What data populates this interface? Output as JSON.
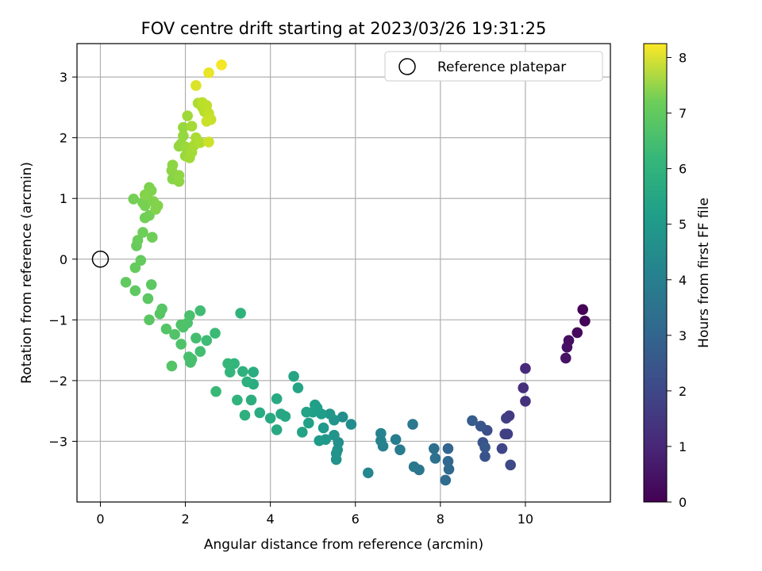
{
  "chart_data": {
    "type": "scatter",
    "title": "FOV centre drift starting at 2023/03/26 19:31:25",
    "xlabel": "Angular distance from reference (arcmin)",
    "ylabel": "Rotation from reference (arcmin)",
    "xlim": [
      -0.55,
      12.0
    ],
    "ylim": [
      -4.0,
      3.55
    ],
    "xticks": [
      0,
      2,
      4,
      6,
      8,
      10
    ],
    "yticks": [
      -3,
      -2,
      -1,
      0,
      1,
      2,
      3
    ],
    "grid": true,
    "legend": {
      "placement": "top-right",
      "entries": [
        {
          "label": "Reference platepar",
          "marker": "hollow-circle"
        }
      ]
    },
    "reference_point": {
      "x": 0,
      "y": 0
    },
    "colorbar": {
      "label": "Hours from first FF file",
      "min": 0,
      "max": 8.25,
      "ticks": [
        0,
        1,
        2,
        3,
        4,
        5,
        6,
        7,
        8
      ],
      "colormap": "viridis"
    },
    "series": [
      {
        "marker": "filled-circle",
        "points": [
          {
            "x": 11.35,
            "y": -0.83,
            "c": 0.05
          },
          {
            "x": 11.4,
            "y": -1.02,
            "c": 0.1
          },
          {
            "x": 11.22,
            "y": -1.21,
            "c": 0.2
          },
          {
            "x": 11.02,
            "y": -1.34,
            "c": 0.3
          },
          {
            "x": 10.98,
            "y": -1.45,
            "c": 0.35
          },
          {
            "x": 10.95,
            "y": -1.63,
            "c": 0.4
          },
          {
            "x": 10.0,
            "y": -1.8,
            "c": 1.0
          },
          {
            "x": 9.95,
            "y": -2.12,
            "c": 1.1
          },
          {
            "x": 10.0,
            "y": -2.34,
            "c": 1.15
          },
          {
            "x": 9.62,
            "y": -2.58,
            "c": 1.4
          },
          {
            "x": 9.55,
            "y": -2.62,
            "c": 1.5
          },
          {
            "x": 9.52,
            "y": -2.88,
            "c": 1.6
          },
          {
            "x": 9.45,
            "y": -3.12,
            "c": 1.7
          },
          {
            "x": 9.65,
            "y": -3.39,
            "c": 1.8
          },
          {
            "x": 9.1,
            "y": -2.82,
            "c": 2.0
          },
          {
            "x": 9.0,
            "y": -3.02,
            "c": 2.1
          },
          {
            "x": 9.05,
            "y": -3.25,
            "c": 2.15
          },
          {
            "x": 8.95,
            "y": -2.75,
            "c": 2.2
          },
          {
            "x": 8.75,
            "y": -2.66,
            "c": 2.4
          },
          {
            "x": 9.05,
            "y": -3.1,
            "c": 2.25
          },
          {
            "x": 9.58,
            "y": -2.88,
            "c": 1.55
          },
          {
            "x": 8.18,
            "y": -3.12,
            "c": 2.7
          },
          {
            "x": 8.18,
            "y": -3.33,
            "c": 2.75
          },
          {
            "x": 8.2,
            "y": -3.46,
            "c": 2.8
          },
          {
            "x": 8.12,
            "y": -3.64,
            "c": 2.9
          },
          {
            "x": 7.85,
            "y": -3.12,
            "c": 3.0
          },
          {
            "x": 7.88,
            "y": -3.28,
            "c": 3.05
          },
          {
            "x": 7.5,
            "y": -3.47,
            "c": 3.2
          },
          {
            "x": 7.38,
            "y": -3.42,
            "c": 3.3
          },
          {
            "x": 7.35,
            "y": -2.72,
            "c": 3.35
          },
          {
            "x": 7.05,
            "y": -3.14,
            "c": 3.45
          },
          {
            "x": 6.95,
            "y": -2.97,
            "c": 3.5
          },
          {
            "x": 6.65,
            "y": -3.08,
            "c": 3.6
          },
          {
            "x": 6.6,
            "y": -2.87,
            "c": 3.65
          },
          {
            "x": 6.6,
            "y": -2.99,
            "c": 3.7
          },
          {
            "x": 6.3,
            "y": -3.52,
            "c": 3.8
          },
          {
            "x": 5.9,
            "y": -2.72,
            "c": 4.0
          },
          {
            "x": 5.7,
            "y": -2.6,
            "c": 4.05
          },
          {
            "x": 5.6,
            "y": -3.02,
            "c": 4.1
          },
          {
            "x": 5.58,
            "y": -3.14,
            "c": 4.15
          },
          {
            "x": 5.55,
            "y": -3.3,
            "c": 4.2
          },
          {
            "x": 5.55,
            "y": -3.2,
            "c": 4.22
          },
          {
            "x": 5.5,
            "y": -2.9,
            "c": 4.25
          },
          {
            "x": 5.5,
            "y": -2.65,
            "c": 4.3
          },
          {
            "x": 5.4,
            "y": -2.55,
            "c": 4.35
          },
          {
            "x": 5.3,
            "y": -2.97,
            "c": 4.4
          },
          {
            "x": 5.25,
            "y": -2.78,
            "c": 4.45
          },
          {
            "x": 5.15,
            "y": -2.99,
            "c": 4.5
          },
          {
            "x": 5.2,
            "y": -2.55,
            "c": 4.55
          },
          {
            "x": 5.1,
            "y": -2.45,
            "c": 4.6
          },
          {
            "x": 5.05,
            "y": -2.4,
            "c": 4.62
          },
          {
            "x": 5.0,
            "y": -2.52,
            "c": 4.65
          },
          {
            "x": 4.9,
            "y": -2.7,
            "c": 4.7
          },
          {
            "x": 4.85,
            "y": -2.52,
            "c": 4.72
          },
          {
            "x": 4.75,
            "y": -2.85,
            "c": 4.75
          },
          {
            "x": 4.65,
            "y": -2.12,
            "c": 4.8
          },
          {
            "x": 4.55,
            "y": -1.93,
            "c": 4.85
          },
          {
            "x": 4.35,
            "y": -2.59,
            "c": 4.9
          },
          {
            "x": 4.25,
            "y": -2.55,
            "c": 4.92
          },
          {
            "x": 4.15,
            "y": -2.81,
            "c": 4.95
          },
          {
            "x": 4.15,
            "y": -2.3,
            "c": 4.97
          },
          {
            "x": 4.0,
            "y": -2.62,
            "c": 5.0
          },
          {
            "x": 3.75,
            "y": -2.53,
            "c": 5.05
          },
          {
            "x": 3.6,
            "y": -2.06,
            "c": 5.1
          },
          {
            "x": 3.6,
            "y": -1.86,
            "c": 5.12
          },
          {
            "x": 3.55,
            "y": -2.32,
            "c": 5.15
          },
          {
            "x": 3.45,
            "y": -2.02,
            "c": 5.2
          },
          {
            "x": 3.4,
            "y": -2.57,
            "c": 5.22
          },
          {
            "x": 3.35,
            "y": -1.85,
            "c": 5.25
          },
          {
            "x": 3.3,
            "y": -0.89,
            "c": 5.3
          },
          {
            "x": 3.22,
            "y": -2.32,
            "c": 5.35
          },
          {
            "x": 3.15,
            "y": -1.72,
            "c": 5.4
          },
          {
            "x": 3.05,
            "y": -1.86,
            "c": 5.45
          },
          {
            "x": 3.0,
            "y": -1.72,
            "c": 5.5
          },
          {
            "x": 2.72,
            "y": -2.18,
            "c": 5.55
          },
          {
            "x": 2.7,
            "y": -1.22,
            "c": 5.6
          },
          {
            "x": 2.5,
            "y": -1.34,
            "c": 5.65
          },
          {
            "x": 2.35,
            "y": -0.85,
            "c": 5.7
          },
          {
            "x": 2.35,
            "y": -1.52,
            "c": 5.72
          },
          {
            "x": 2.25,
            "y": -1.3,
            "c": 5.75
          },
          {
            "x": 2.15,
            "y": -1.65,
            "c": 5.78
          },
          {
            "x": 2.12,
            "y": -1.7,
            "c": 5.8
          },
          {
            "x": 2.08,
            "y": -1.61,
            "c": 5.82
          },
          {
            "x": 2.1,
            "y": -0.93,
            "c": 5.85
          },
          {
            "x": 2.05,
            "y": -1.05,
            "c": 5.88
          },
          {
            "x": 1.95,
            "y": -1.12,
            "c": 5.9
          },
          {
            "x": 1.9,
            "y": -1.4,
            "c": 5.92
          },
          {
            "x": 1.9,
            "y": -1.08,
            "c": 5.95
          },
          {
            "x": 1.75,
            "y": -1.24,
            "c": 5.97
          },
          {
            "x": 1.68,
            "y": -1.76,
            "c": 6.0
          },
          {
            "x": 1.55,
            "y": -1.15,
            "c": 6.02
          },
          {
            "x": 1.45,
            "y": -0.82,
            "c": 6.05
          },
          {
            "x": 1.4,
            "y": -0.9,
            "c": 6.07
          },
          {
            "x": 1.15,
            "y": -1.0,
            "c": 6.1
          },
          {
            "x": 1.12,
            "y": -0.65,
            "c": 6.12
          },
          {
            "x": 1.2,
            "y": -0.42,
            "c": 6.15
          },
          {
            "x": 0.82,
            "y": -0.52,
            "c": 6.18
          },
          {
            "x": 0.6,
            "y": -0.38,
            "c": 6.2
          },
          {
            "x": 0.95,
            "y": -0.02,
            "c": 6.25
          },
          {
            "x": 0.82,
            "y": -0.14,
            "c": 6.28
          },
          {
            "x": 0.85,
            "y": 0.22,
            "c": 6.3
          },
          {
            "x": 0.88,
            "y": 0.31,
            "c": 6.35
          },
          {
            "x": 1.0,
            "y": 0.44,
            "c": 6.4
          },
          {
            "x": 1.22,
            "y": 0.36,
            "c": 6.42
          },
          {
            "x": 1.05,
            "y": 0.68,
            "c": 6.45
          },
          {
            "x": 1.15,
            "y": 0.72,
            "c": 6.47
          },
          {
            "x": 0.78,
            "y": 0.99,
            "c": 6.5
          },
          {
            "x": 1.0,
            "y": 0.93,
            "c": 6.52
          },
          {
            "x": 1.05,
            "y": 0.88,
            "c": 6.55
          },
          {
            "x": 1.1,
            "y": 1.02,
            "c": 6.57
          },
          {
            "x": 1.15,
            "y": 1.18,
            "c": 6.6
          },
          {
            "x": 1.2,
            "y": 1.13,
            "c": 6.62
          },
          {
            "x": 1.25,
            "y": 0.95,
            "c": 6.65
          },
          {
            "x": 1.3,
            "y": 0.82,
            "c": 6.67
          },
          {
            "x": 1.35,
            "y": 0.88,
            "c": 6.68
          },
          {
            "x": 1.05,
            "y": 1.06,
            "c": 6.7
          },
          {
            "x": 1.7,
            "y": 1.32,
            "c": 6.75
          },
          {
            "x": 1.68,
            "y": 1.46,
            "c": 6.78
          },
          {
            "x": 1.7,
            "y": 1.55,
            "c": 6.8
          },
          {
            "x": 1.85,
            "y": 1.28,
            "c": 6.82
          },
          {
            "x": 1.85,
            "y": 1.38,
            "c": 6.85
          },
          {
            "x": 1.85,
            "y": 1.86,
            "c": 6.88
          },
          {
            "x": 1.9,
            "y": 1.9,
            "c": 6.9
          },
          {
            "x": 1.95,
            "y": 2.03,
            "c": 6.92
          },
          {
            "x": 1.95,
            "y": 2.17,
            "c": 6.95
          },
          {
            "x": 2.0,
            "y": 1.7,
            "c": 6.97
          },
          {
            "x": 2.0,
            "y": 1.85,
            "c": 7.0
          },
          {
            "x": 2.05,
            "y": 2.36,
            "c": 7.05
          },
          {
            "x": 2.1,
            "y": 1.67,
            "c": 7.08
          },
          {
            "x": 2.15,
            "y": 1.76,
            "c": 7.1
          },
          {
            "x": 2.15,
            "y": 2.19,
            "c": 7.12
          },
          {
            "x": 2.2,
            "y": 1.87,
            "c": 7.15
          },
          {
            "x": 2.25,
            "y": 2.0,
            "c": 7.18
          },
          {
            "x": 2.3,
            "y": 2.57,
            "c": 7.2
          },
          {
            "x": 2.35,
            "y": 1.92,
            "c": 7.25
          },
          {
            "x": 2.4,
            "y": 2.5,
            "c": 7.3
          },
          {
            "x": 2.45,
            "y": 2.43,
            "c": 7.35
          },
          {
            "x": 2.4,
            "y": 2.58,
            "c": 7.4
          },
          {
            "x": 2.5,
            "y": 2.53,
            "c": 7.45
          },
          {
            "x": 2.55,
            "y": 2.4,
            "c": 7.5
          },
          {
            "x": 2.6,
            "y": 2.3,
            "c": 7.55
          },
          {
            "x": 2.5,
            "y": 2.27,
            "c": 7.6
          },
          {
            "x": 2.55,
            "y": 1.93,
            "c": 7.65
          },
          {
            "x": 2.25,
            "y": 2.86,
            "c": 7.8
          },
          {
            "x": 2.55,
            "y": 3.07,
            "c": 8.0
          },
          {
            "x": 2.85,
            "y": 3.2,
            "c": 8.15
          }
        ]
      }
    ]
  }
}
